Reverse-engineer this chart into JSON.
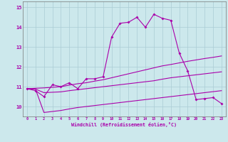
{
  "xlabel": "Windchill (Refroidissement éolien,°C)",
  "background_color": "#cce8ec",
  "grid_color": "#aaccd4",
  "line_color": "#aa00aa",
  "x_ticks": [
    0,
    1,
    2,
    3,
    4,
    5,
    6,
    7,
    8,
    9,
    10,
    11,
    12,
    13,
    14,
    15,
    16,
    17,
    18,
    19,
    20,
    21,
    22,
    23
  ],
  "ylim": [
    9.5,
    15.3
  ],
  "xlim": [
    -0.5,
    23.5
  ],
  "yticks": [
    10,
    11,
    12,
    13,
    14,
    15
  ],
  "series1": [
    10.9,
    10.8,
    10.5,
    11.1,
    11.0,
    11.2,
    10.9,
    11.4,
    11.4,
    11.5,
    13.5,
    14.2,
    14.25,
    14.5,
    14.0,
    14.65,
    14.45,
    14.35,
    12.7,
    11.8,
    10.35,
    10.4,
    10.45,
    10.15
  ],
  "series2": [
    10.9,
    10.92,
    10.94,
    10.97,
    11.0,
    11.08,
    11.15,
    11.2,
    11.28,
    11.35,
    11.45,
    11.55,
    11.65,
    11.75,
    11.85,
    11.95,
    12.05,
    12.12,
    12.2,
    12.28,
    12.35,
    12.42,
    12.48,
    12.55
  ],
  "series3": [
    10.9,
    10.88,
    10.7,
    10.72,
    10.74,
    10.8,
    10.85,
    10.9,
    10.95,
    11.0,
    11.05,
    11.1,
    11.15,
    11.2,
    11.25,
    11.3,
    11.38,
    11.45,
    11.5,
    11.55,
    11.6,
    11.65,
    11.7,
    11.75
  ],
  "series4": [
    10.9,
    10.88,
    9.7,
    9.75,
    9.8,
    9.88,
    9.95,
    10.0,
    10.05,
    10.1,
    10.15,
    10.2,
    10.25,
    10.3,
    10.35,
    10.4,
    10.45,
    10.5,
    10.55,
    10.6,
    10.65,
    10.7,
    10.75,
    10.8
  ]
}
